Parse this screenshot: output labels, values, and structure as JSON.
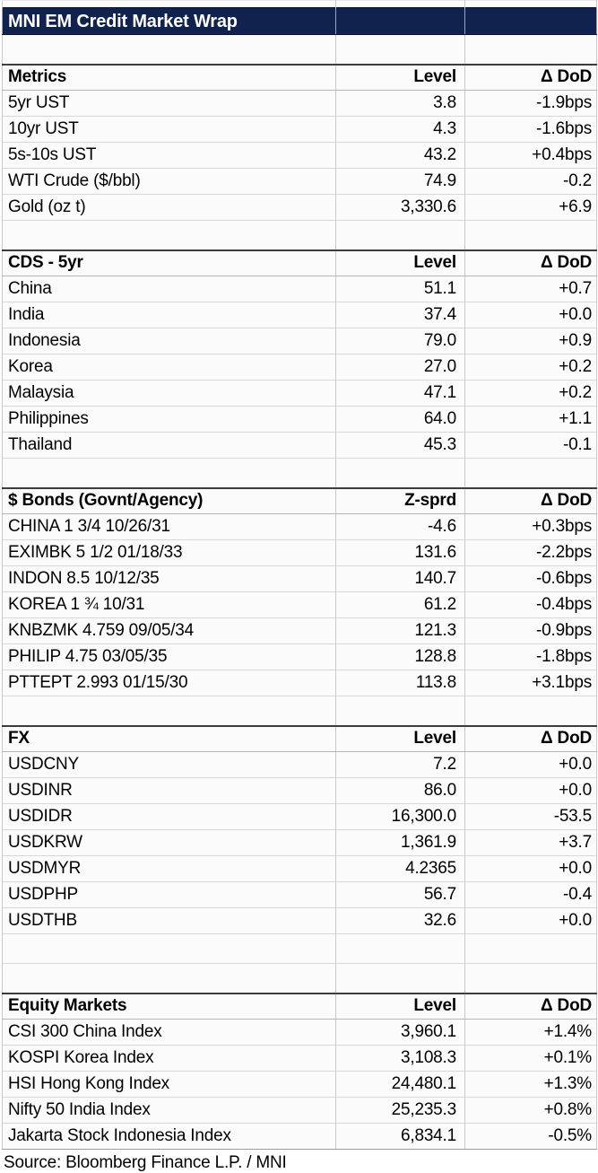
{
  "title": "MNI EM Credit Market Wrap",
  "footer": "Source: Bloomberg Finance L.P. / MNI",
  "colors": {
    "navy": "#12224f",
    "title_text": "#ffffff",
    "cell_bg": "#fbfbfb",
    "grid_vertical": "#c9c9c9",
    "grid_horizontal": "#d8d8d8",
    "section_top_border": "#3c3c3c",
    "table_bottom_border": "#9c9c9c",
    "text": "#000000"
  },
  "chart_data": [
    {
      "type": "table",
      "title": "Metrics",
      "columns": [
        "Metrics",
        "Level",
        "Δ DoD"
      ],
      "spacer_rows_before": 1,
      "rows": [
        [
          "5yr UST",
          "3.8",
          "-1.9bps"
        ],
        [
          "10yr UST",
          "4.3",
          "-1.6bps"
        ],
        [
          "5s-10s UST",
          "43.2",
          "+0.4bps"
        ],
        [
          "WTI Crude ($/bbl)",
          "74.9",
          "-0.2"
        ],
        [
          "Gold (oz t)",
          "3,330.6",
          "+6.9"
        ]
      ]
    },
    {
      "type": "table",
      "title": "CDS - 5yr",
      "columns": [
        "CDS - 5yr",
        "Level",
        "Δ DoD"
      ],
      "spacer_rows_before": 1,
      "rows": [
        [
          "China",
          "51.1",
          "+0.7"
        ],
        [
          "India",
          "37.4",
          "+0.0"
        ],
        [
          "Indonesia",
          "79.0",
          "+0.9"
        ],
        [
          "Korea",
          "27.0",
          "+0.2"
        ],
        [
          "Malaysia",
          "47.1",
          "+0.2"
        ],
        [
          "Philippines",
          "64.0",
          "+1.1"
        ],
        [
          "Thailand",
          "45.3",
          "-0.1"
        ]
      ]
    },
    {
      "type": "table",
      "title": "$ Bonds (Govnt/Agency)",
      "columns": [
        "$ Bonds (Govnt/Agency)",
        "Z-sprd",
        "Δ DoD"
      ],
      "spacer_rows_before": 1,
      "rows": [
        [
          "CHINA 1 3/4 10/26/31",
          "-4.6",
          "+0.3bps"
        ],
        [
          "EXIMBK 5 1/2 01/18/33",
          "131.6",
          "-2.2bps"
        ],
        [
          "INDON 8.5 10/12/35",
          "140.7",
          "-0.6bps"
        ],
        [
          "KOREA 1 ¾ 10/31",
          "61.2",
          "-0.4bps"
        ],
        [
          "KNBZMK 4.759 09/05/34",
          "121.3",
          "-0.9bps"
        ],
        [
          "PHILIP 4.75 03/05/35",
          "128.8",
          "-1.8bps"
        ],
        [
          "PTTEPT 2.993 01/15/30",
          "113.8",
          "+3.1bps"
        ]
      ]
    },
    {
      "type": "table",
      "title": "FX",
      "columns": [
        "FX",
        "Level",
        "Δ DoD"
      ],
      "spacer_rows_before": 1,
      "rows": [
        [
          "USDCNY",
          "7.2",
          "+0.0"
        ],
        [
          "USDINR",
          "86.0",
          "+0.0"
        ],
        [
          "USDIDR",
          "16,300.0",
          "-53.5"
        ],
        [
          "USDKRW",
          "1,361.9",
          "+3.7"
        ],
        [
          "USDMYR",
          "4.2365",
          "+0.0"
        ],
        [
          "USDPHP",
          "56.7",
          "-0.4"
        ],
        [
          "USDTHB",
          "32.6",
          "+0.0"
        ]
      ]
    },
    {
      "type": "table",
      "title": "Equity Markets",
      "columns": [
        "Equity Markets",
        "Level",
        "Δ DoD"
      ],
      "spacer_rows_before": 2,
      "rows": [
        [
          "CSI 300 China Index",
          "3,960.1",
          "+1.4%"
        ],
        [
          "KOSPI Korea Index",
          "3,108.3",
          "+0.1%"
        ],
        [
          "HSI Hong Kong Index",
          "24,480.1",
          "+1.3%"
        ],
        [
          "Nifty 50 India Index",
          "25,235.3",
          "+0.8%"
        ],
        [
          "Jakarta Stock Indonesia Index",
          "6,834.1",
          "-0.5%"
        ]
      ]
    }
  ]
}
